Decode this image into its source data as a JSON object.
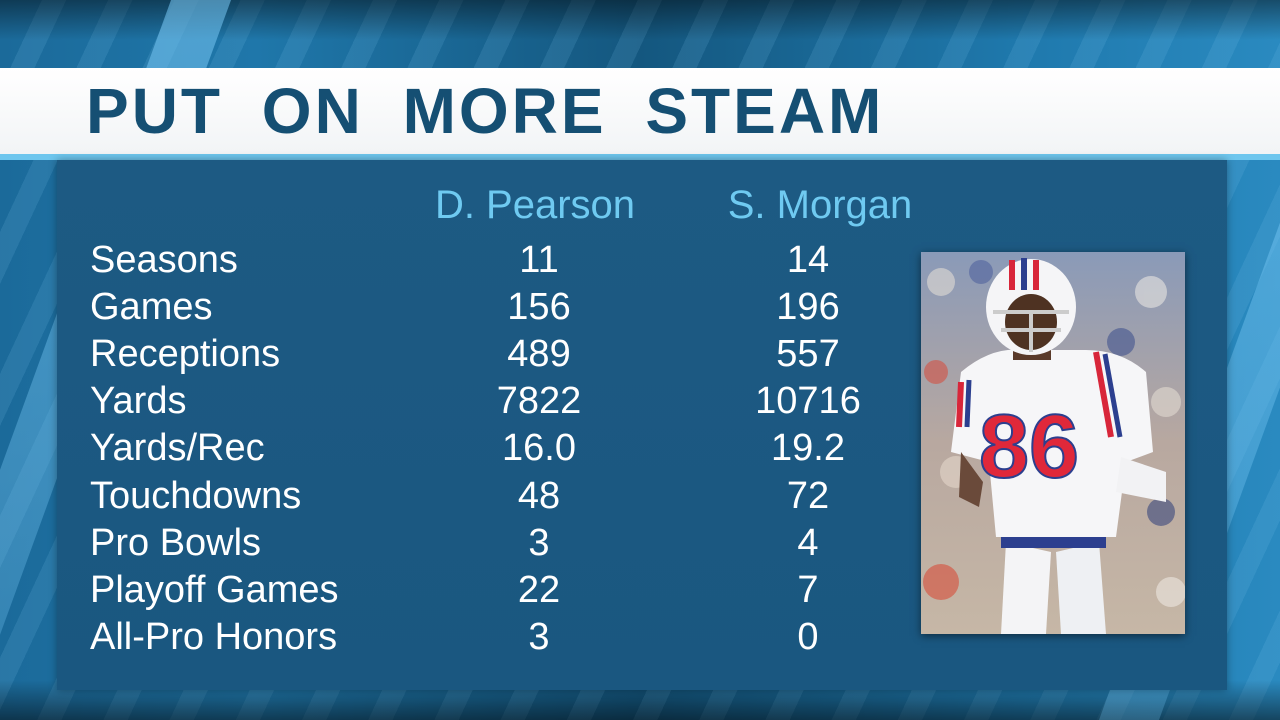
{
  "title": "PUT ON MORE STEAM",
  "players": [
    "D. Pearson",
    "S. Morgan"
  ],
  "stats": [
    {
      "label": "Seasons",
      "pearson": "11",
      "morgan": "14"
    },
    {
      "label": "Games",
      "pearson": "156",
      "morgan": "196"
    },
    {
      "label": "Receptions",
      "pearson": "489",
      "morgan": "557"
    },
    {
      "label": "Yards",
      "pearson": "7822",
      "morgan": "10716"
    },
    {
      "label": "Yards/Rec",
      "pearson": "16.0",
      "morgan": "19.2"
    },
    {
      "label": "Touchdowns",
      "pearson": "48",
      "morgan": "72"
    },
    {
      "label": "Pro Bowls",
      "pearson": "3",
      "morgan": "4"
    },
    {
      "label": "Playoff Games",
      "pearson": "22",
      "morgan": "7"
    },
    {
      "label": "All-Pro Honors",
      "pearson": "3",
      "morgan": "0"
    }
  ],
  "photo": {
    "jersey_number": "86"
  },
  "colors": {
    "title_text": "#154f73",
    "player_name": "#6fcaf1",
    "panel": "#1d5a83",
    "jersey_number": "#e0283a"
  }
}
